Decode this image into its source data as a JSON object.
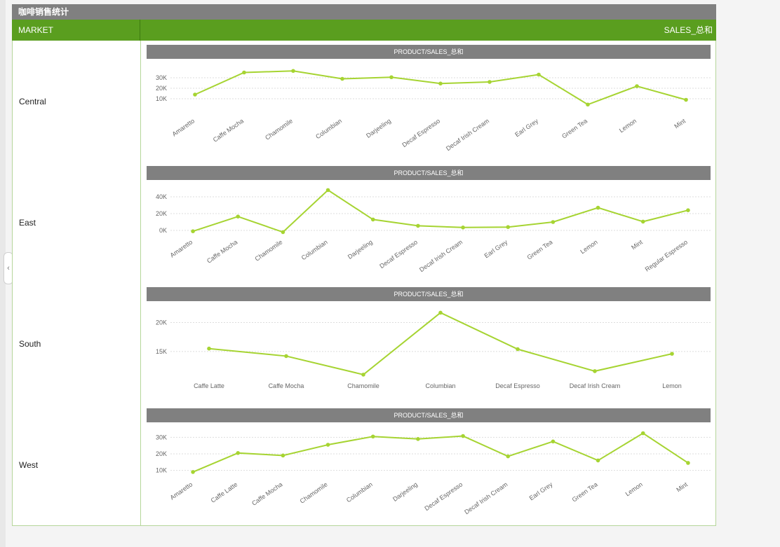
{
  "page": {
    "title": "咖啡销售统计",
    "header": {
      "market": "MARKET",
      "sales": "SALES_总和"
    }
  },
  "chart_data": [
    {
      "type": "line",
      "market": "Central",
      "title": "PRODUCT/SALES_总和",
      "categories": [
        "Amaretto",
        "Caffe Mocha",
        "Chamomile",
        "Columbian",
        "Darjeeling",
        "Decaf Espresso",
        "Decaf Irish Cream",
        "Earl Grey",
        "Green Tea",
        "Lemon",
        "Mint"
      ],
      "values": [
        14000,
        35000,
        36500,
        29000,
        30500,
        24500,
        26000,
        33000,
        4500,
        22000,
        9000
      ],
      "yticks": [
        10000,
        20000,
        30000
      ],
      "ytick_labels": [
        "10K",
        "20K",
        "30K"
      ],
      "ylim": [
        -4000,
        40000
      ],
      "label_rotation": -35,
      "color": "#a6d432"
    },
    {
      "type": "line",
      "market": "East",
      "title": "PRODUCT/SALES_总和",
      "categories": [
        "Amaretto",
        "Caffe Mocha",
        "Chamomile",
        "Columbian",
        "Darjeeling",
        "Decaf Espresso",
        "Decaf Irish Cream",
        "Earl Grey",
        "Green Tea",
        "Lemon",
        "Mint",
        "Regular Espresso"
      ],
      "values": [
        -1000,
        16500,
        -2000,
        48000,
        13000,
        5500,
        3500,
        4000,
        10000,
        27000,
        10500,
        24000
      ],
      "yticks": [
        0,
        20000,
        40000
      ],
      "ytick_labels": [
        "0K",
        "20K",
        "40K"
      ],
      "ylim": [
        -5000,
        50000
      ],
      "label_rotation": -35,
      "color": "#a6d432"
    },
    {
      "type": "line",
      "market": "South",
      "title": "PRODUCT/SALES_总和",
      "categories": [
        "Caffe Latte",
        "Caffe Mocha",
        "Chamomile",
        "Columbian",
        "Decaf Espresso",
        "Decaf Irish Cream",
        "Lemon"
      ],
      "values": [
        15500,
        14200,
        11000,
        21700,
        15400,
        11600,
        14600
      ],
      "yticks": [
        15000,
        20000
      ],
      "ytick_labels": [
        "15K",
        "20K"
      ],
      "ylim": [
        10500,
        22000
      ],
      "label_rotation": 0,
      "color": "#a6d432"
    },
    {
      "type": "line",
      "market": "West",
      "title": "PRODUCT/SALES_总和",
      "categories": [
        "Amaretto",
        "Caffe Latte",
        "Caffe Mocha",
        "Chamomile",
        "Columbian",
        "Darjeeling",
        "Decaf Espresso",
        "Decaf Irish Cream",
        "Earl Grey",
        "Green Tea",
        "Lemon",
        "Mint"
      ],
      "values": [
        9000,
        20500,
        19000,
        25500,
        30500,
        29000,
        30800,
        18500,
        27500,
        16000,
        32500,
        14500
      ],
      "yticks": [
        10000,
        20000,
        30000
      ],
      "ytick_labels": [
        "10K",
        "20K",
        "30K"
      ],
      "ylim": [
        6000,
        34000
      ],
      "label_rotation": -35,
      "color": "#a6d432"
    }
  ]
}
